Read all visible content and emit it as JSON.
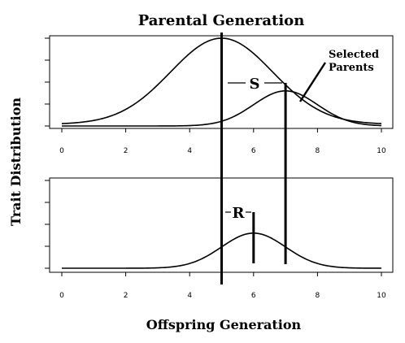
{
  "chart_data": {
    "type": "line",
    "title": "Parental Generation",
    "xlabel": "Offspring Generation",
    "ylabel": "Trait Distribution",
    "xlim": [
      0,
      10
    ],
    "x_ticks": [
      "0",
      "2",
      "4",
      "6",
      "8",
      "10"
    ],
    "grid": false,
    "panels": [
      {
        "name": "parental",
        "series": [
          {
            "kind": "normal",
            "mean": 5,
            "sd": 1.6,
            "peak": 1.0,
            "base": 0.02
          },
          {
            "kind": "normal",
            "mean": 7,
            "sd": 1.0,
            "peak": 0.4,
            "base": 0.0
          }
        ],
        "y_ticks": 5
      },
      {
        "name": "offspring",
        "series": [
          {
            "kind": "normal",
            "mean": 6,
            "sd": 1.0,
            "peak": 0.4,
            "base": 0.0
          }
        ],
        "y_ticks": 5
      }
    ],
    "markers": {
      "parental_mean": 5,
      "selected_mean": 7,
      "offspring_mean": 6
    },
    "annotations": {
      "selection_differential": "S",
      "response": "R",
      "selected_label_line1": "Selected",
      "selected_label_line2": "Parents"
    }
  }
}
